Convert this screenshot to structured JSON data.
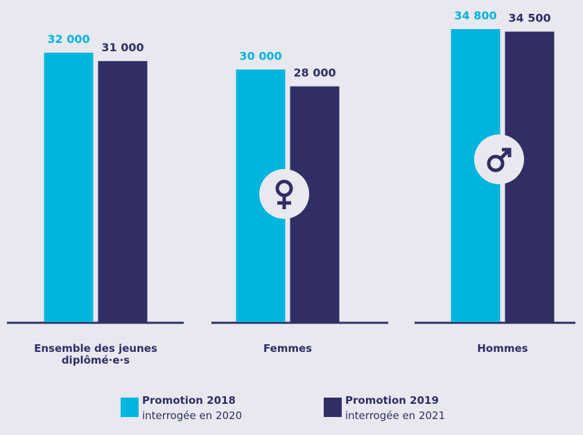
{
  "chart_data": {
    "type": "bar",
    "categories": [
      "Ensemble des jeunes diplômé·e·s",
      "Femmes",
      "Hommes"
    ],
    "series": [
      {
        "name": "Promotion 2018",
        "legend_sublabel": "interrogée en 2020",
        "color": "#00b5dd",
        "values": [
          32000,
          30000,
          34800
        ],
        "value_labels": [
          "32 000",
          "30 000",
          "34 800"
        ]
      },
      {
        "name": "Promotion 2019",
        "legend_sublabel": "interrogée en 2021",
        "color": "#2f2f66",
        "values": [
          31000,
          28000,
          34500
        ],
        "value_labels": [
          "31 000",
          "28 000",
          "34 500"
        ]
      }
    ]
  }
}
